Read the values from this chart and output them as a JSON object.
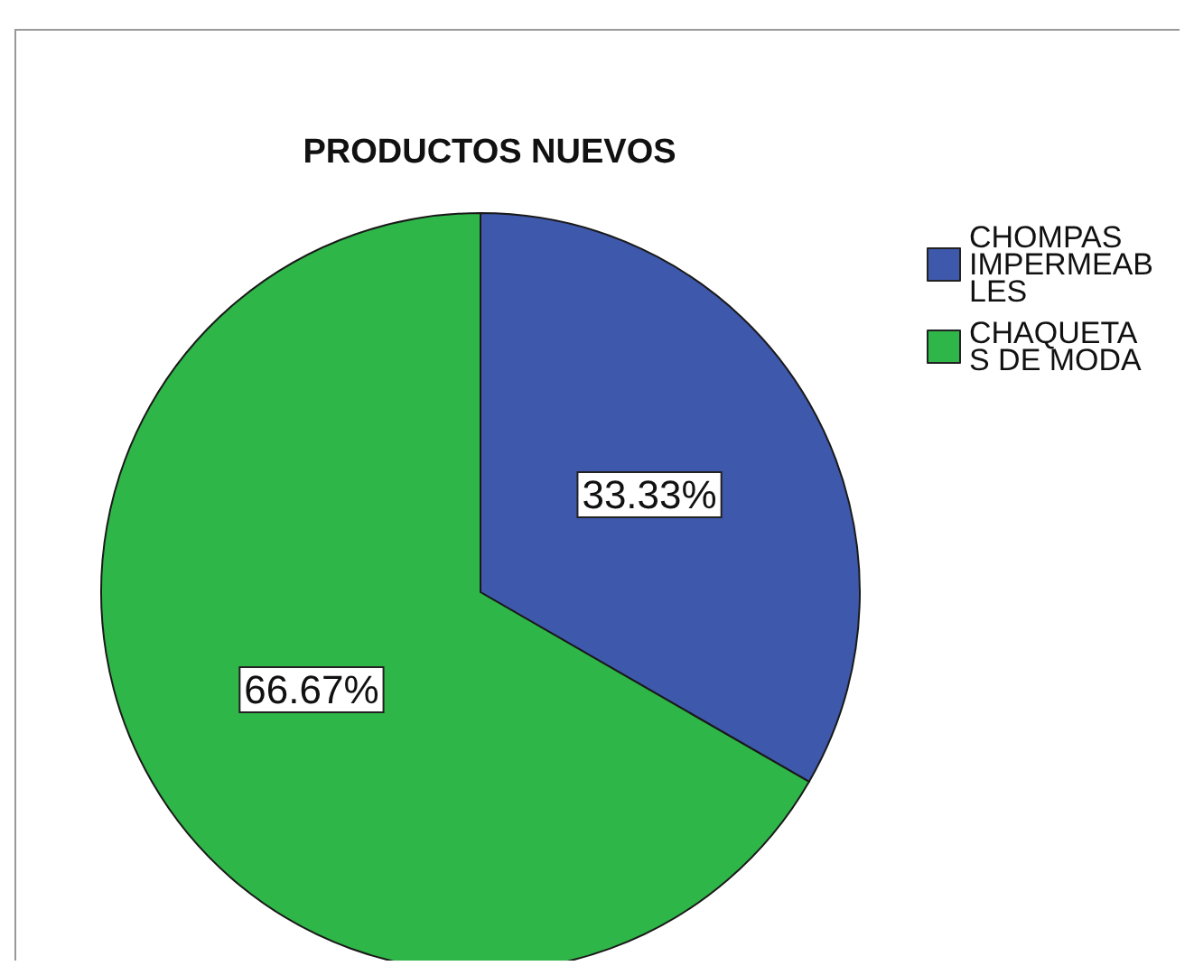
{
  "chart_data": {
    "type": "pie",
    "title": "PRODUCTOS NUEVOS",
    "categories": [
      "CHOMPAS IMPERMEABLES",
      "CHAQUETAS DE MODA"
    ],
    "values": [
      33.33,
      66.67
    ],
    "value_labels": [
      "33.33%",
      "66.67%"
    ],
    "colors": [
      "#3e58ac",
      "#2fb648"
    ],
    "legend": "top right"
  }
}
